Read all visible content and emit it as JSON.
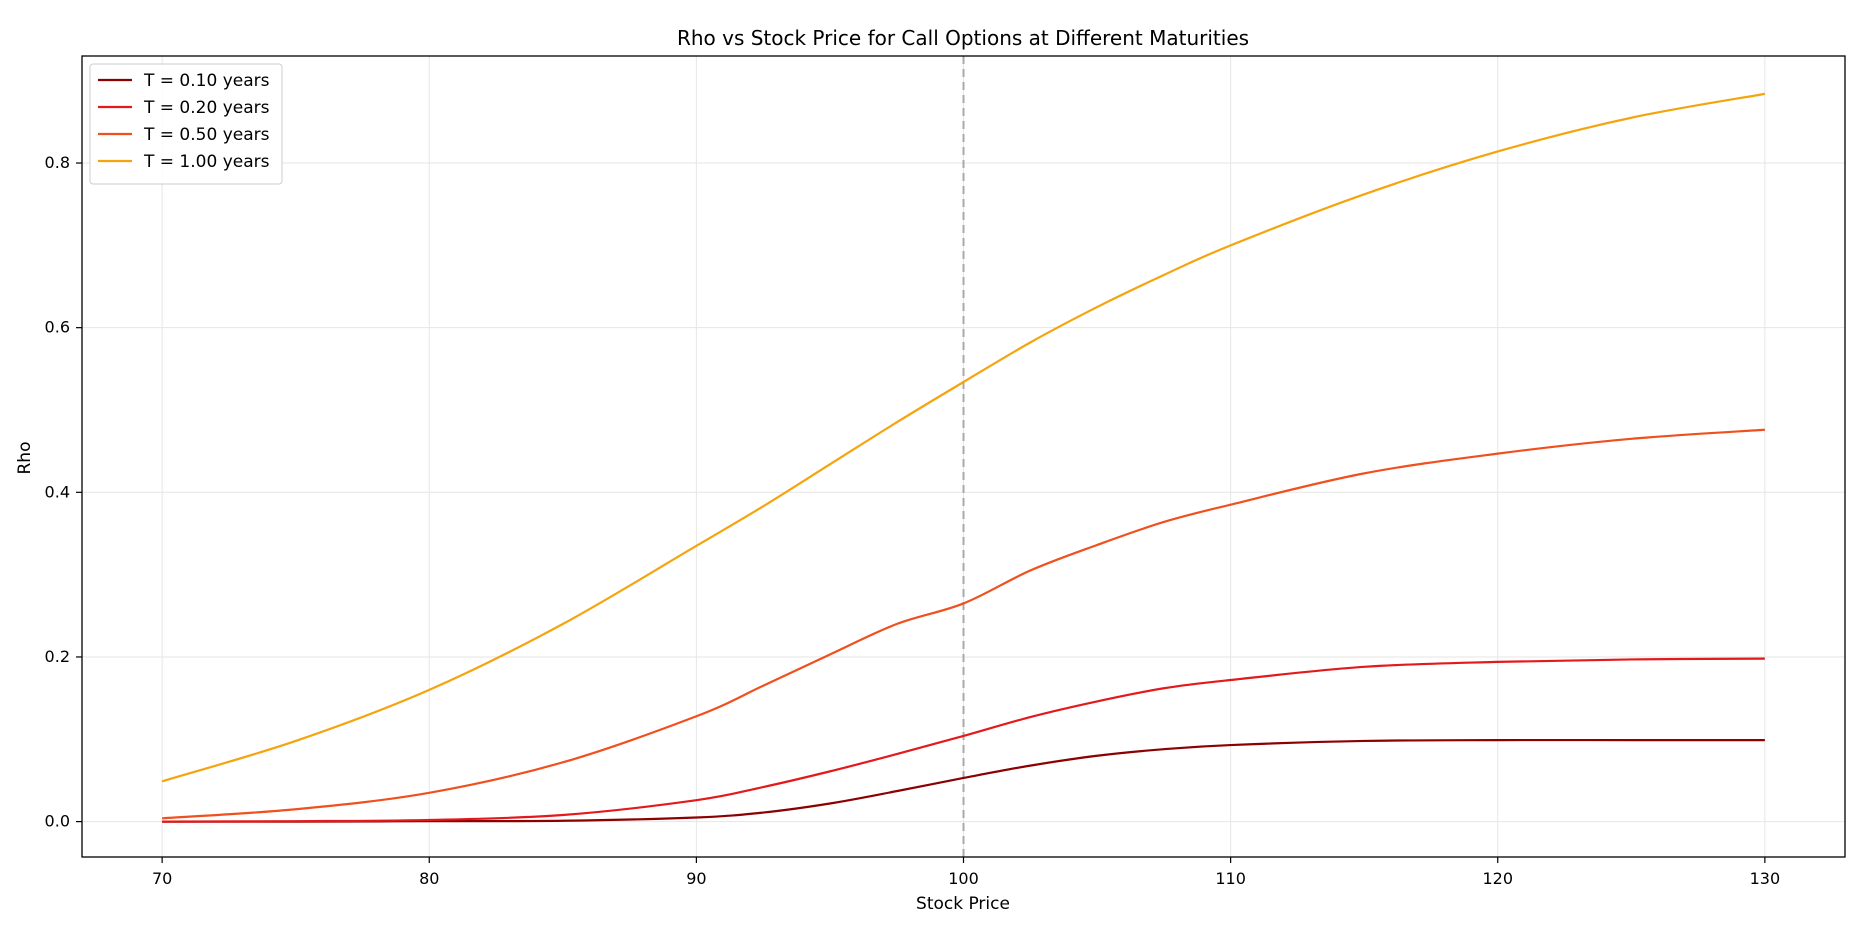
{
  "chart_data": {
    "type": "line",
    "title": "Rho vs Stock Price for Call Options at Different Maturities",
    "xlabel": "Stock Price",
    "ylabel": "Rho",
    "xlim": [
      67,
      133
    ],
    "ylim": [
      -0.043,
      0.93
    ],
    "xticks": [
      70,
      80,
      90,
      100,
      110,
      120,
      130
    ],
    "yticks": [
      0.0,
      0.2,
      0.4,
      0.6,
      0.8
    ],
    "ytick_labels": [
      "0.0",
      "0.2",
      "0.4",
      "0.6",
      "0.8"
    ],
    "grid": true,
    "legend_position": "top-left",
    "reference_line": {
      "x": 100,
      "style": "dashed",
      "color": "#aaaaaa"
    },
    "x": [
      70,
      75,
      80,
      85,
      90,
      92.5,
      95,
      97.5,
      100,
      102.5,
      105,
      107.5,
      110,
      115,
      120,
      125,
      130
    ],
    "series": [
      {
        "name": "T = 0.10 years",
        "color": "#8b0000",
        "values": [
          0.0,
          0.0,
          0.0005,
          0.001,
          0.005,
          0.011,
          0.022,
          0.037,
          0.053,
          0.068,
          0.08,
          0.088,
          0.093,
          0.098,
          0.099,
          0.099,
          0.099
        ]
      },
      {
        "name": "T = 0.20 years",
        "color": "#e31a1c",
        "values": [
          0.0,
          0.0005,
          0.002,
          0.008,
          0.026,
          0.042,
          0.061,
          0.082,
          0.104,
          0.127,
          0.146,
          0.162,
          0.172,
          0.188,
          0.194,
          0.197,
          0.198
        ]
      },
      {
        "name": "T = 0.50 years",
        "color": "#f0501e",
        "values": [
          0.004,
          0.015,
          0.035,
          0.072,
          0.128,
          0.165,
          0.203,
          0.24,
          0.265,
          0.305,
          0.336,
          0.364,
          0.385,
          0.423,
          0.447,
          0.465,
          0.476
        ]
      },
      {
        "name": "T = 1.00 years",
        "color": "#f5a40e",
        "values": [
          0.049,
          0.098,
          0.16,
          0.24,
          0.335,
          0.383,
          0.434,
          0.485,
          0.534,
          0.582,
          0.625,
          0.664,
          0.7,
          0.762,
          0.814,
          0.855,
          0.884
        ]
      }
    ]
  }
}
